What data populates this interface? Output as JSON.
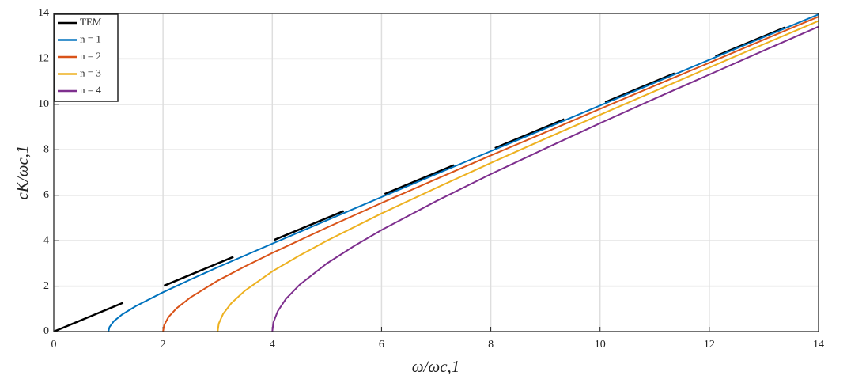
{
  "chart_data": {
    "type": "line",
    "xlabel": "ω/ωc,1",
    "ylabel": "cK/ωc,1",
    "xlim": [
      0,
      14
    ],
    "ylim": [
      0,
      14
    ],
    "xticks": [
      0,
      2,
      4,
      6,
      8,
      10,
      12,
      14
    ],
    "yticks": [
      0,
      2,
      4,
      6,
      8,
      10,
      12,
      14
    ],
    "grid": true,
    "legend": "upper left",
    "series": [
      {
        "name": "TEM",
        "color": "#000000",
        "dashed": true,
        "x": [
          0,
          14
        ],
        "values": [
          0,
          14
        ]
      },
      {
        "name": "n = 1",
        "color": "#0072bd",
        "x": [
          1,
          1.02,
          1.1,
          1.25,
          1.5,
          2,
          2.5,
          3,
          4,
          5,
          6,
          7,
          8,
          9,
          10,
          11,
          12,
          13,
          14
        ],
        "values": [
          0,
          0.2,
          0.46,
          0.75,
          1.12,
          1.73,
          2.29,
          2.83,
          3.87,
          4.9,
          5.92,
          6.93,
          7.94,
          8.94,
          9.95,
          10.95,
          11.96,
          12.96,
          13.96
        ]
      },
      {
        "name": "n = 2",
        "color": "#d95319",
        "x": [
          2,
          2.02,
          2.1,
          2.25,
          2.5,
          3,
          3.5,
          4,
          5,
          6,
          7,
          8,
          9,
          10,
          11,
          12,
          13,
          14
        ],
        "values": [
          0,
          0.28,
          0.64,
          1.03,
          1.5,
          2.24,
          2.87,
          3.46,
          4.58,
          5.66,
          6.71,
          7.75,
          8.77,
          9.8,
          10.82,
          11.83,
          12.85,
          13.86
        ]
      },
      {
        "name": "n = 3",
        "color": "#edb120",
        "x": [
          3,
          3.02,
          3.1,
          3.25,
          3.5,
          4,
          4.5,
          5,
          6,
          7,
          8,
          9,
          10,
          11,
          12,
          13,
          14
        ],
        "values": [
          0,
          0.35,
          0.78,
          1.25,
          1.8,
          2.65,
          3.35,
          4,
          5.2,
          6.32,
          7.42,
          8.49,
          9.54,
          10.58,
          11.62,
          12.65,
          13.67
        ]
      },
      {
        "name": "n = 4",
        "color": "#7e2f8e",
        "x": [
          4,
          4.02,
          4.1,
          4.25,
          4.5,
          5,
          5.5,
          6,
          7,
          8,
          9,
          10,
          11,
          12,
          13,
          14
        ],
        "values": [
          0,
          0.4,
          0.9,
          1.44,
          2.06,
          3,
          3.77,
          4.47,
          5.74,
          6.93,
          8.06,
          9.17,
          10.25,
          11.31,
          12.37,
          13.42
        ]
      }
    ]
  }
}
